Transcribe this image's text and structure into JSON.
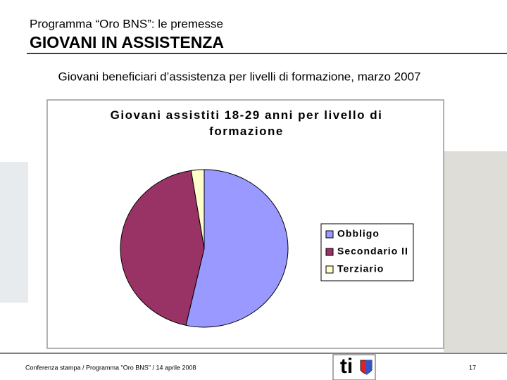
{
  "header": {
    "kicker": "Programma “Oro BNS”: le premesse",
    "title": "GIOVANI IN ASSISTENZA"
  },
  "subtitle": "Giovani beneficiari d’assistenza per livelli di formazione, marzo 2007",
  "chart_data": {
    "type": "pie",
    "title": "Giovani assistiti 18-29 anni per livello di formazione",
    "categories": [
      "Obbligo",
      "Secondario II",
      "Terziario"
    ],
    "values": [
      53.5,
      44,
      2.5
    ],
    "colors": [
      "#9999ff",
      "#993366",
      "#ffffcc"
    ],
    "legend": "right"
  },
  "footer": {
    "text": "Conferenza stampa / Programma \"Oro BNS\" / 14 aprile 2008",
    "logo": "ti",
    "page": "17"
  }
}
